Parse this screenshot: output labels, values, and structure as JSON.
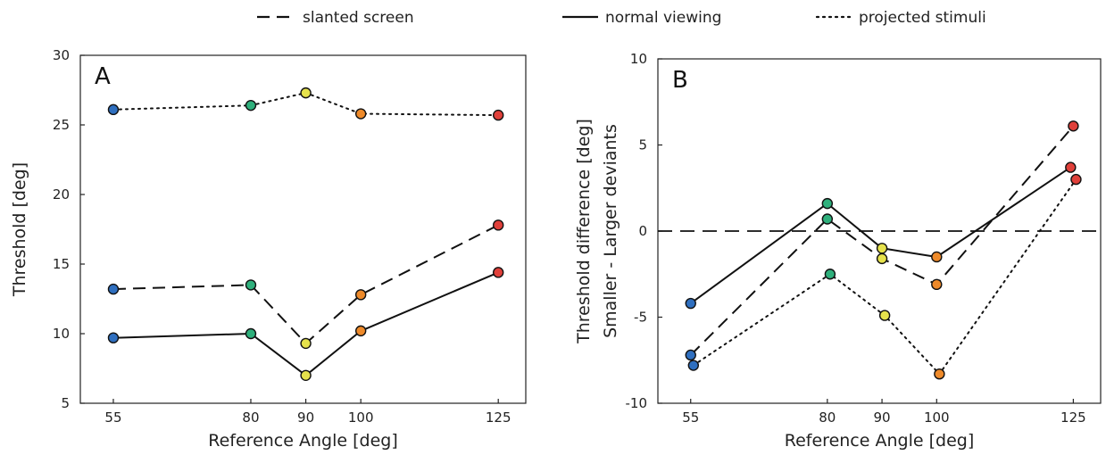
{
  "legend": [
    {
      "key": "slanted",
      "label": "slanted screen",
      "dash": "dashed"
    },
    {
      "key": "normal",
      "label": "normal viewing",
      "dash": "solid"
    },
    {
      "key": "projected",
      "label": "projected stimuli",
      "dash": "dotted"
    }
  ],
  "point_colors": {
    "55": "#2f6fbf",
    "80": "#2fb07c",
    "90": "#e6e24c",
    "100": "#ee8a2a",
    "125": "#e0403a"
  },
  "chart_data": [
    {
      "type": "line",
      "panel_label": "A",
      "xlabel": "Reference Angle [deg]",
      "ylabel": "Threshold [deg]",
      "ylabel2": "",
      "x_ticks": [
        55,
        80,
        90,
        100,
        125
      ],
      "y_ticks": [
        5,
        10,
        15,
        20,
        25,
        30
      ],
      "xlim": [
        49,
        130
      ],
      "ylim": [
        5,
        30
      ],
      "zero_line": false,
      "series": [
        {
          "key": "projected",
          "name": "projected stimuli",
          "dash": "dotted",
          "points": [
            [
              55,
              26.1
            ],
            [
              80,
              26.4
            ],
            [
              90,
              27.3
            ],
            [
              100,
              25.8
            ],
            [
              125,
              25.7
            ]
          ]
        },
        {
          "key": "slanted",
          "name": "slanted screen",
          "dash": "dashed",
          "points": [
            [
              55,
              13.2
            ],
            [
              80,
              13.5
            ],
            [
              90,
              9.3
            ],
            [
              100,
              12.8
            ],
            [
              125,
              17.8
            ]
          ]
        },
        {
          "key": "normal",
          "name": "normal viewing",
          "dash": "solid",
          "points": [
            [
              55,
              9.7
            ],
            [
              80,
              10.0
            ],
            [
              90,
              7.0
            ],
            [
              100,
              10.2
            ],
            [
              125,
              14.4
            ]
          ]
        }
      ]
    },
    {
      "type": "line",
      "panel_label": "B",
      "xlabel": "Reference Angle [deg]",
      "ylabel": "Threshold difference [deg]",
      "ylabel2": "Smaller - Larger deviants",
      "x_ticks": [
        55,
        80,
        90,
        100,
        125
      ],
      "y_ticks": [
        -10,
        -5,
        0,
        5,
        10
      ],
      "xlim": [
        49,
        130
      ],
      "ylim": [
        -10,
        10
      ],
      "zero_line": true,
      "series": [
        {
          "key": "normal",
          "name": "normal viewing",
          "dash": "solid",
          "points": [
            [
              55,
              -4.2
            ],
            [
              80,
              1.6
            ],
            [
              90,
              -1.0
            ],
            [
              100,
              -1.5
            ],
            [
              124.5,
              3.7
            ]
          ]
        },
        {
          "key": "slanted",
          "name": "slanted screen",
          "dash": "dashed",
          "points": [
            [
              55,
              -7.2
            ],
            [
              80,
              0.7
            ],
            [
              90,
              -1.6
            ],
            [
              100,
              -3.1
            ],
            [
              125,
              6.1
            ]
          ]
        },
        {
          "key": "projected",
          "name": "projected stimuli",
          "dash": "dotted",
          "points": [
            [
              55.5,
              -7.8
            ],
            [
              80.5,
              -2.5
            ],
            [
              90.5,
              -4.9
            ],
            [
              100.5,
              -8.3
            ],
            [
              125.5,
              3.0
            ]
          ]
        }
      ]
    }
  ]
}
